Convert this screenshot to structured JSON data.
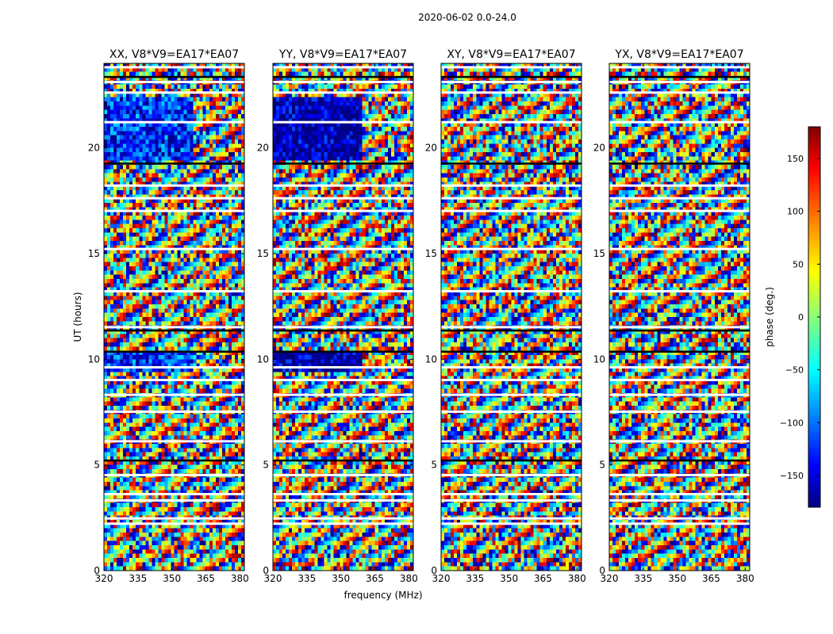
{
  "figure": {
    "suptitle": "2020-06-02 0.0-24.0",
    "xlabel": "frequency (MHz)",
    "ylabel": "UT (hours)"
  },
  "colorbar": {
    "label": "phase (deg.)",
    "ticks": [
      150,
      100,
      50,
      0,
      -50,
      -100,
      -150
    ],
    "tick_labels": [
      "150",
      "100",
      "50",
      "0",
      "−50",
      "−100",
      "−150"
    ],
    "range": [
      -180,
      180
    ],
    "colormap": "jet",
    "colors": [
      "#00007f",
      "#0000ff",
      "#00ffff",
      "#ffff00",
      "#ff0000",
      "#7f0000"
    ]
  },
  "chart_data": {
    "type": "heatmap",
    "x_ticks": [
      320,
      335,
      350,
      365,
      380
    ],
    "x_tick_labels": [
      "320",
      "335",
      "350",
      "365",
      "380"
    ],
    "y_ticks": [
      0,
      5,
      10,
      15,
      20
    ],
    "y_tick_labels": [
      "0",
      "5",
      "10",
      "15",
      "20"
    ],
    "xlim": [
      320,
      382
    ],
    "ylim": [
      0,
      24
    ],
    "panels": [
      {
        "title": "XX, V8*V9=EA17*EA07",
        "smooth_phase": -120
      },
      {
        "title": "YY, V8*V9=EA17*EA07",
        "smooth_phase": -170
      },
      {
        "title": "XY, V8*V9=EA17*EA07",
        "smooth_phase": null
      },
      {
        "title": "YX, V8*V9=EA17*EA07",
        "smooth_phase": null
      }
    ],
    "flagged_hours": [
      2.2,
      2.45,
      3.3,
      3.6,
      4.5,
      6.1,
      7.5,
      8.3,
      9.0,
      9.6,
      11.5,
      13.2,
      15.2,
      17.0,
      17.6,
      18.2,
      21.2,
      22.6,
      23.1,
      23.8
    ],
    "dark_band_hours": [
      5.2,
      10.35,
      11.35,
      19.25,
      23.35
    ]
  }
}
